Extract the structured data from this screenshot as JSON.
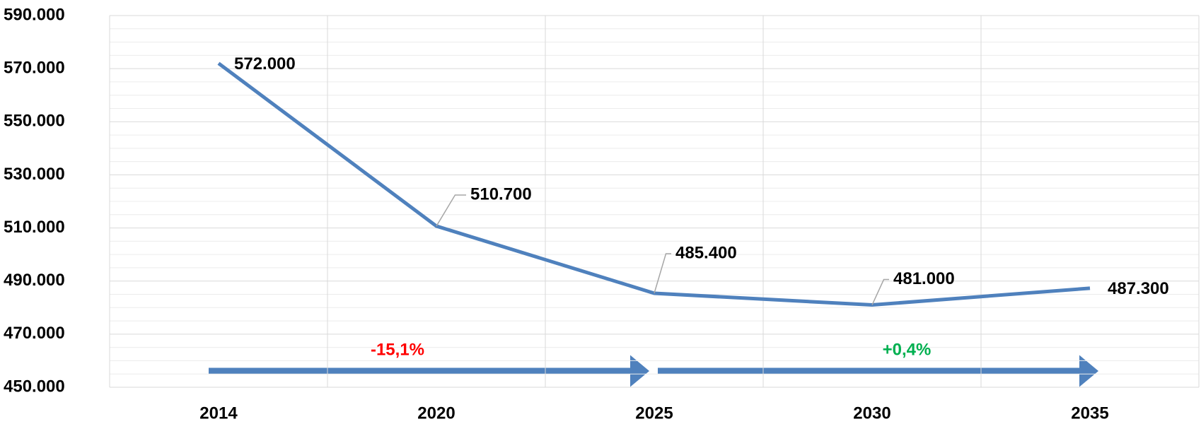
{
  "chart_data": {
    "type": "line",
    "categories": [
      "2014",
      "2020",
      "2025",
      "2030",
      "2035"
    ],
    "series": [
      {
        "color": "#4f81bd",
        "values": [
          572000,
          510700,
          485400,
          481000,
          487300
        ],
        "value_labels": [
          "572.000",
          "510.700",
          "485.400",
          "481.000",
          "487.300"
        ]
      }
    ],
    "ylim": [
      450000,
      590000
    ],
    "yticks": [
      {
        "value": 450000,
        "label": "450.000"
      },
      {
        "value": 470000,
        "label": "470.000"
      },
      {
        "value": 490000,
        "label": "490.000"
      },
      {
        "value": 510000,
        "label": "510.000"
      },
      {
        "value": 530000,
        "label": "530.000"
      },
      {
        "value": 550000,
        "label": "550.000"
      },
      {
        "value": 570000,
        "label": "570.000"
      },
      {
        "value": 590000,
        "label": "590.000"
      }
    ],
    "yminorticks": [
      455000,
      460000,
      465000,
      475000,
      480000,
      485000,
      495000,
      500000,
      505000,
      515000,
      520000,
      525000,
      535000,
      540000,
      545000,
      555000,
      560000,
      565000,
      575000,
      580000,
      585000
    ],
    "grid": true,
    "annotations": [
      {
        "text": "-15,1%",
        "color": "#ff0000"
      },
      {
        "text": "+0,4%",
        "color": "#00b050"
      }
    ]
  }
}
